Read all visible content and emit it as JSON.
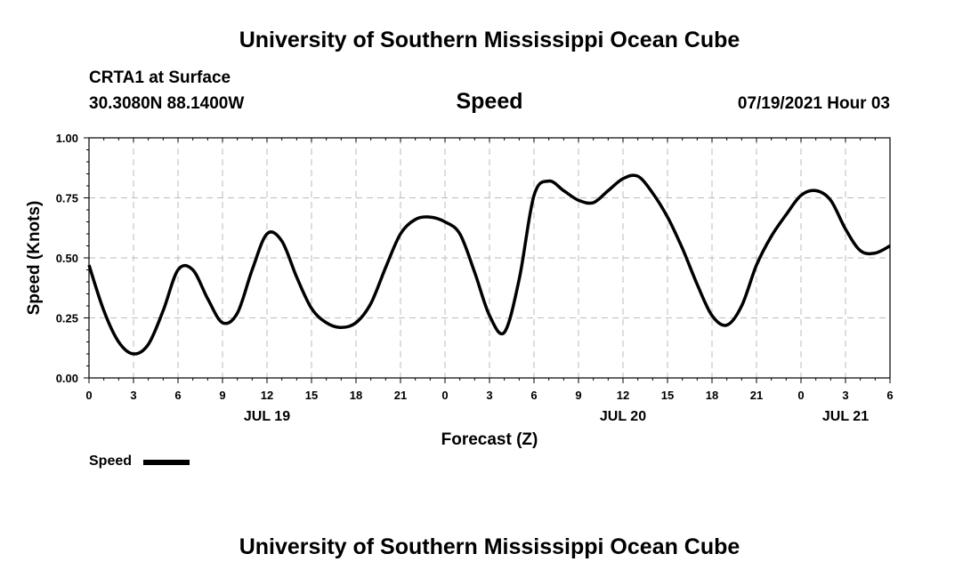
{
  "header": {
    "title": "University of Southern Mississippi Ocean Cube",
    "station": "CRTA1 at Surface",
    "coords": "30.3080N  88.1400W",
    "variable": "Speed",
    "datetime": "07/19/2021 Hour 03"
  },
  "footer": {
    "title": "University of Southern Mississippi Ocean Cube"
  },
  "legend": {
    "label": "Speed"
  },
  "colors": {
    "line": "#000000",
    "grid": "#bbbbbb"
  },
  "chart_data": {
    "type": "line",
    "title": "Speed",
    "xlabel": "Forecast (Z)",
    "ylabel": "Speed (Knots)",
    "ylim": [
      0,
      1
    ],
    "xlim": [
      0,
      54
    ],
    "grid": true,
    "legend_position": "bottom-left",
    "yticks": [
      {
        "value": 0,
        "label": "0.00"
      },
      {
        "value": 0.25,
        "label": "0.25"
      },
      {
        "value": 0.5,
        "label": "0.50"
      },
      {
        "value": 0.75,
        "label": "0.75"
      },
      {
        "value": 1,
        "label": "1.00"
      }
    ],
    "xticks": [
      {
        "value": 0,
        "label": "0"
      },
      {
        "value": 3,
        "label": "3"
      },
      {
        "value": 6,
        "label": "6"
      },
      {
        "value": 9,
        "label": "9"
      },
      {
        "value": 12,
        "label": "12"
      },
      {
        "value": 15,
        "label": "15"
      },
      {
        "value": 18,
        "label": "18"
      },
      {
        "value": 21,
        "label": "21"
      },
      {
        "value": 24,
        "label": "0"
      },
      {
        "value": 27,
        "label": "3"
      },
      {
        "value": 30,
        "label": "6"
      },
      {
        "value": 33,
        "label": "9"
      },
      {
        "value": 36,
        "label": "12"
      },
      {
        "value": 39,
        "label": "15"
      },
      {
        "value": 42,
        "label": "18"
      },
      {
        "value": 45,
        "label": "21"
      },
      {
        "value": 48,
        "label": "0"
      },
      {
        "value": 51,
        "label": "3"
      },
      {
        "value": 54,
        "label": "6"
      }
    ],
    "day_labels": [
      {
        "value": 12,
        "label": "JUL 19"
      },
      {
        "value": 36,
        "label": "JUL 20"
      },
      {
        "value": 51,
        "label": "JUL 21"
      }
    ],
    "series": [
      {
        "name": "Speed",
        "x": [
          0,
          1,
          2,
          3,
          4,
          5,
          6,
          7,
          8,
          9,
          10,
          11,
          12,
          13,
          14,
          15,
          16,
          17,
          18,
          19,
          20,
          21,
          22,
          23,
          24,
          25,
          26,
          27,
          28,
          29,
          30,
          31,
          32,
          33,
          34,
          35,
          36,
          37,
          38,
          39,
          40,
          41,
          42,
          43,
          44,
          45,
          46,
          47,
          48,
          49,
          50,
          51,
          52,
          53,
          54
        ],
        "values": [
          0.47,
          0.28,
          0.15,
          0.1,
          0.14,
          0.28,
          0.45,
          0.45,
          0.33,
          0.23,
          0.27,
          0.45,
          0.6,
          0.57,
          0.42,
          0.29,
          0.23,
          0.21,
          0.23,
          0.31,
          0.46,
          0.6,
          0.66,
          0.67,
          0.65,
          0.6,
          0.44,
          0.26,
          0.19,
          0.41,
          0.76,
          0.82,
          0.78,
          0.74,
          0.73,
          0.78,
          0.83,
          0.84,
          0.77,
          0.67,
          0.54,
          0.39,
          0.26,
          0.22,
          0.3,
          0.47,
          0.59,
          0.68,
          0.76,
          0.78,
          0.74,
          0.62,
          0.53,
          0.52,
          0.55
        ]
      }
    ]
  }
}
